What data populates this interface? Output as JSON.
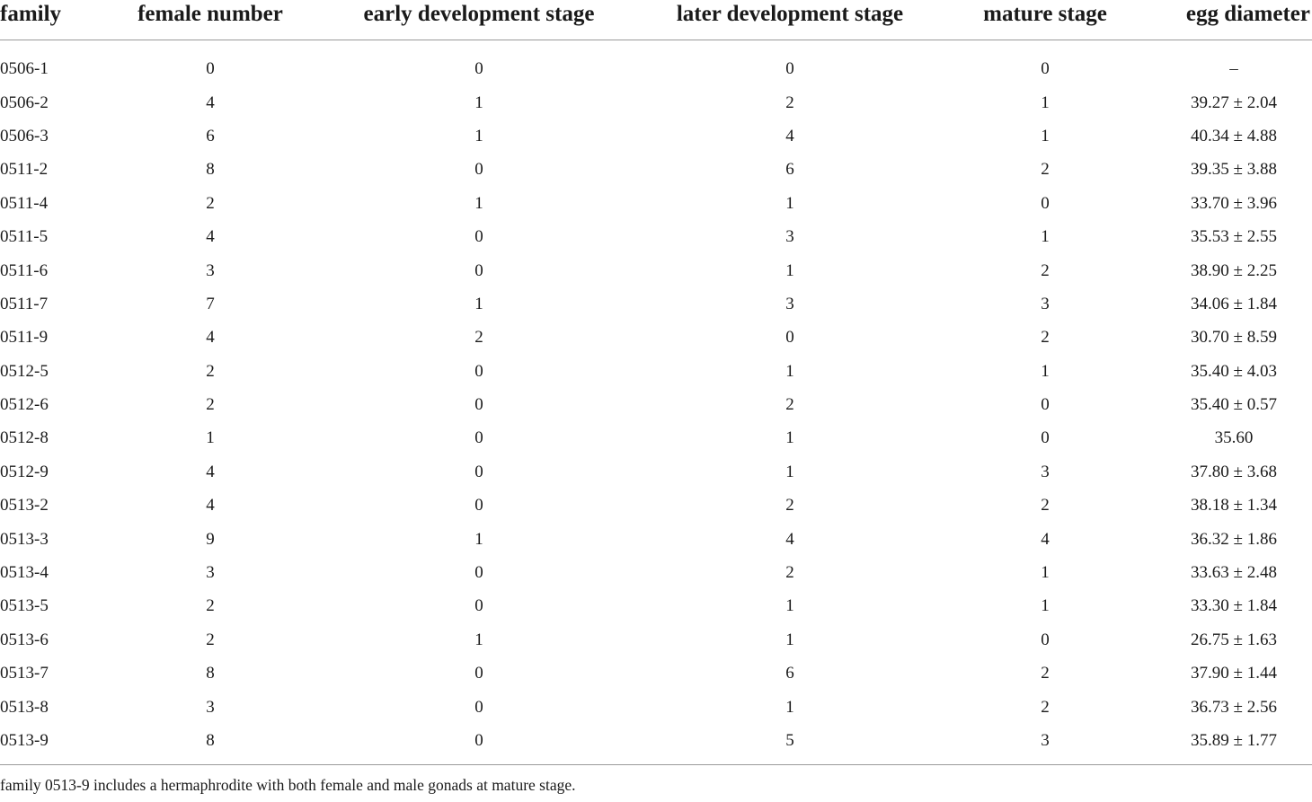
{
  "table": {
    "headers": [
      "family",
      "female number",
      "early development stage",
      "later development stage",
      "mature stage",
      "egg diameter"
    ],
    "rows": [
      [
        "0506-1",
        "0",
        "0",
        "0",
        "0",
        "–"
      ],
      [
        "0506-2",
        "4",
        "1",
        "2",
        "1",
        "39.27 ± 2.04"
      ],
      [
        "0506-3",
        "6",
        "1",
        "4",
        "1",
        "40.34 ± 4.88"
      ],
      [
        "0511-2",
        "8",
        "0",
        "6",
        "2",
        "39.35 ± 3.88"
      ],
      [
        "0511-4",
        "2",
        "1",
        "1",
        "0",
        "33.70 ± 3.96"
      ],
      [
        "0511-5",
        "4",
        "0",
        "3",
        "1",
        "35.53 ± 2.55"
      ],
      [
        "0511-6",
        "3",
        "0",
        "1",
        "2",
        "38.90 ± 2.25"
      ],
      [
        "0511-7",
        "7",
        "1",
        "3",
        "3",
        "34.06 ± 1.84"
      ],
      [
        "0511-9",
        "4",
        "2",
        "0",
        "2",
        "30.70 ± 8.59"
      ],
      [
        "0512-5",
        "2",
        "0",
        "1",
        "1",
        "35.40 ± 4.03"
      ],
      [
        "0512-6",
        "2",
        "0",
        "2",
        "0",
        "35.40 ± 0.57"
      ],
      [
        "0512-8",
        "1",
        "0",
        "1",
        "0",
        "35.60"
      ],
      [
        "0512-9",
        "4",
        "0",
        "1",
        "3",
        "37.80 ± 3.68"
      ],
      [
        "0513-2",
        "4",
        "0",
        "2",
        "2",
        "38.18 ± 1.34"
      ],
      [
        "0513-3",
        "9",
        "1",
        "4",
        "4",
        "36.32 ± 1.86"
      ],
      [
        "0513-4",
        "3",
        "0",
        "2",
        "1",
        "33.63 ± 2.48"
      ],
      [
        "0513-5",
        "2",
        "0",
        "1",
        "1",
        "33.30 ± 1.84"
      ],
      [
        "0513-6",
        "2",
        "1",
        "1",
        "0",
        "26.75 ± 1.63"
      ],
      [
        "0513-7",
        "8",
        "0",
        "6",
        "2",
        "37.90 ± 1.44"
      ],
      [
        "0513-8",
        "3",
        "0",
        "1",
        "2",
        "36.73 ± 2.56"
      ],
      [
        "0513-9",
        "8",
        "0",
        "5",
        "3",
        "35.89 ± 1.77"
      ]
    ]
  },
  "footnote": "family 0513-9 includes a hermaphrodite with both female and male gonads at mature stage."
}
